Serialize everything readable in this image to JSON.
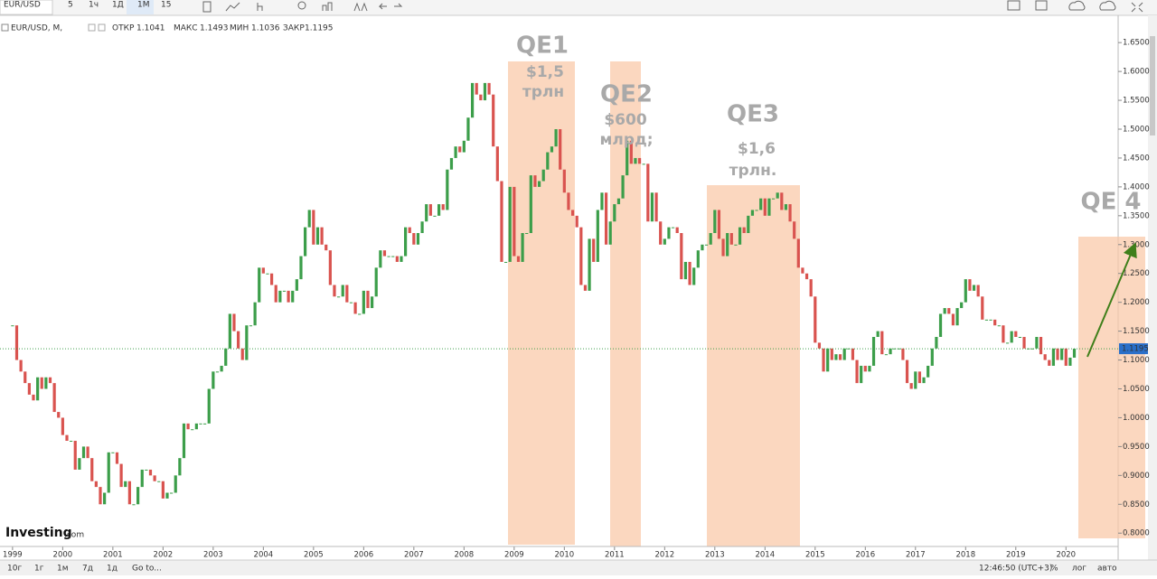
{
  "toolbar": {
    "symbol": "EUR/USD",
    "intervals": [
      "5",
      "1ч",
      "1Д",
      "1М",
      "15"
    ]
  },
  "legend": {
    "title": "EUR/USD, M,",
    "open_label": "ОТКР",
    "open": 1.1041,
    "high_label": "МАКС",
    "high": 1.1493,
    "low_label": "МИН",
    "low": 1.1036,
    "close_label": "ЗАКР",
    "close": 1.1195
  },
  "annotations": {
    "qe1": "QE1",
    "qe1_amount": "$1,5",
    "qe1_unit": "трлн",
    "qe2": "QE2",
    "qe2_amount": "$600",
    "qe2_unit": "млрд;",
    "qe3": "QE3",
    "qe3_amount": "$1,6",
    "qe3_unit": "трлн.",
    "qe4": "QE 4"
  },
  "logo": [
    "Investing",
    ".com"
  ],
  "footer": {
    "ranges": [
      "10г",
      "1г",
      "1м",
      "7д",
      "1д"
    ],
    "goto": "Go to...",
    "time": "12:46:50 (UTC+3)",
    "options": [
      "%",
      "лог",
      "авто"
    ]
  },
  "chart_data": {
    "type": "candlestick",
    "up_color": "#3c9e4a",
    "down_color": "#d9534f",
    "xlim": [
      1998.75,
      2021.04
    ],
    "ylim": [
      0.78,
      1.68
    ],
    "xticks": [
      1999,
      2000,
      2001,
      2002,
      2003,
      2004,
      2005,
      2006,
      2007,
      2008,
      2009,
      2010,
      2011,
      2012,
      2013,
      2014,
      2015,
      2016,
      2017,
      2018,
      2019,
      2020
    ],
    "yticks": [
      {
        "value": 0.8,
        "label": "0.8000"
      },
      {
        "value": 0.85,
        "label": "0.8500"
      },
      {
        "value": 0.9,
        "label": "0.9000"
      },
      {
        "value": 0.95,
        "label": "0.9500"
      },
      {
        "value": 1.0,
        "label": "1.0000"
      },
      {
        "value": 1.05,
        "label": "1.0500"
      },
      {
        "value": 1.1,
        "label": "1.1000"
      },
      {
        "value": 1.15,
        "label": "1.1500"
      },
      {
        "value": 1.2,
        "label": "1.2000"
      },
      {
        "value": 1.25,
        "label": "1.2500"
      },
      {
        "value": 1.3,
        "label": "1.3000"
      },
      {
        "value": 1.35,
        "label": "1.3500"
      },
      {
        "value": 1.4,
        "label": "1.4000"
      },
      {
        "value": 1.45,
        "label": "1.4500"
      },
      {
        "value": 1.5,
        "label": "1.5000"
      },
      {
        "value": 1.55,
        "label": "1.5500"
      },
      {
        "value": 1.6,
        "label": "1.6000"
      },
      {
        "value": 1.65,
        "label": "1.6500"
      }
    ],
    "last_price": {
      "value": 1.1195,
      "label": "1.1195"
    },
    "values": [
      1.16,
      1.1,
      1.08,
      1.06,
      1.04,
      1.03,
      1.07,
      1.05,
      1.07,
      1.06,
      1.01,
      1.0,
      0.97,
      0.96,
      0.96,
      0.91,
      0.93,
      0.95,
      0.93,
      0.89,
      0.88,
      0.85,
      0.87,
      0.94,
      0.94,
      0.92,
      0.88,
      0.89,
      0.85,
      0.85,
      0.88,
      0.91,
      0.91,
      0.9,
      0.89,
      0.89,
      0.86,
      0.87,
      0.87,
      0.9,
      0.93,
      0.99,
      0.98,
      0.98,
      0.99,
      0.99,
      0.99,
      1.05,
      1.08,
      1.08,
      1.09,
      1.12,
      1.18,
      1.15,
      1.12,
      1.1,
      1.16,
      1.16,
      1.2,
      1.26,
      1.25,
      1.25,
      1.23,
      1.2,
      1.22,
      1.22,
      1.2,
      1.22,
      1.24,
      1.28,
      1.33,
      1.36,
      1.3,
      1.33,
      1.3,
      1.29,
      1.23,
      1.21,
      1.21,
      1.23,
      1.2,
      1.2,
      1.18,
      1.18,
      1.22,
      1.19,
      1.21,
      1.26,
      1.29,
      1.28,
      1.28,
      1.28,
      1.27,
      1.28,
      1.33,
      1.32,
      1.3,
      1.32,
      1.34,
      1.37,
      1.35,
      1.35,
      1.37,
      1.36,
      1.43,
      1.45,
      1.47,
      1.46,
      1.48,
      1.52,
      1.58,
      1.56,
      1.55,
      1.58,
      1.56,
      1.47,
      1.41,
      1.27,
      1.27,
      1.4,
      1.28,
      1.27,
      1.32,
      1.32,
      1.42,
      1.4,
      1.41,
      1.43,
      1.46,
      1.47,
      1.5,
      1.43,
      1.39,
      1.36,
      1.35,
      1.33,
      1.23,
      1.22,
      1.31,
      1.27,
      1.36,
      1.39,
      1.3,
      1.34,
      1.37,
      1.38,
      1.42,
      1.48,
      1.44,
      1.45,
      1.44,
      1.44,
      1.34,
      1.39,
      1.34,
      1.3,
      1.31,
      1.33,
      1.33,
      1.32,
      1.24,
      1.27,
      1.23,
      1.26,
      1.29,
      1.3,
      1.3,
      1.32,
      1.36,
      1.31,
      1.28,
      1.32,
      1.3,
      1.3,
      1.33,
      1.32,
      1.35,
      1.36,
      1.36,
      1.38,
      1.35,
      1.38,
      1.38,
      1.39,
      1.36,
      1.37,
      1.34,
      1.31,
      1.26,
      1.25,
      1.24,
      1.21,
      1.13,
      1.12,
      1.08,
      1.12,
      1.1,
      1.11,
      1.1,
      1.12,
      1.12,
      1.1,
      1.06,
      1.09,
      1.08,
      1.09,
      1.14,
      1.15,
      1.11,
      1.11,
      1.12,
      1.12,
      1.12,
      1.1,
      1.06,
      1.05,
      1.08,
      1.06,
      1.07,
      1.09,
      1.12,
      1.14,
      1.18,
      1.19,
      1.18,
      1.16,
      1.19,
      1.2,
      1.24,
      1.22,
      1.23,
      1.21,
      1.17,
      1.17,
      1.17,
      1.16,
      1.16,
      1.13,
      1.13,
      1.15,
      1.14,
      1.14,
      1.12,
      1.12,
      1.12,
      1.14,
      1.11,
      1.1,
      1.09,
      1.12,
      1.1,
      1.12,
      1.09,
      1.1041,
      1.1195
    ]
  }
}
